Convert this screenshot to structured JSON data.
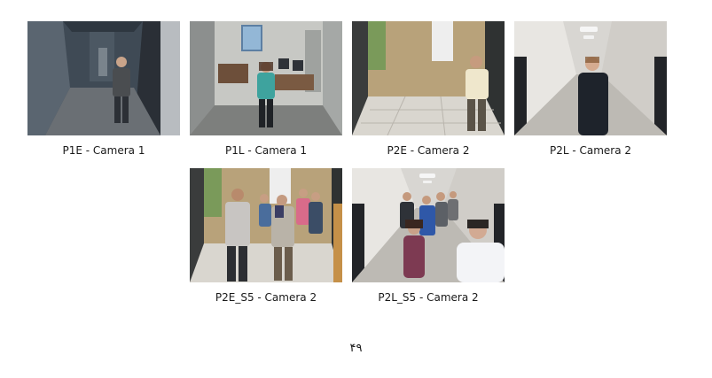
{
  "figures": [
    {
      "id": "p1e",
      "caption": "P1E - Camera 1"
    },
    {
      "id": "p1l",
      "caption": "P1L - Camera 1"
    },
    {
      "id": "p2e",
      "caption": "P2E - Camera 2"
    },
    {
      "id": "p2l",
      "caption": "P2L - Camera 2"
    },
    {
      "id": "p2e5",
      "caption": "P2E_S5 - Camera 2"
    },
    {
      "id": "p2l5",
      "caption": "P2L_S5 - Camera 2"
    }
  ],
  "page_number": "۴۹"
}
